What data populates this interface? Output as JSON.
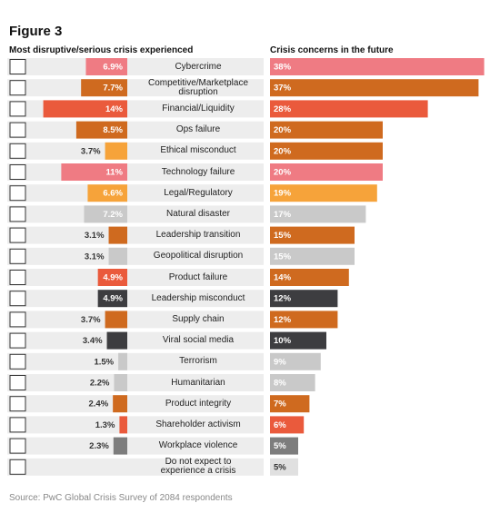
{
  "title": "Figure 3",
  "source": "Source: PwC Global Crisis Survey of 2084 respondents",
  "chart_data": [
    {
      "type": "bar",
      "orientation": "horizontal",
      "direction": "left",
      "title": "Most disruptive/serious crisis experienced",
      "categories": [
        "Cybercrime",
        "Competitive/Marketplace disruption",
        "Financial/Liquidity",
        "Ops failure",
        "Ethical misconduct",
        "Technology failure",
        "Legal/Regulatory",
        "Natural disaster",
        "Leadership transition",
        "Geopolitical disruption",
        "Product failure",
        "Leadership misconduct",
        "Supply chain",
        "Viral social media",
        "Terrorism",
        "Humanitarian",
        "Product integrity",
        "Shareholder activism",
        "Workplace violence",
        "Do not expect to experience a crisis"
      ],
      "values": [
        6.9,
        7.7,
        14,
        8.5,
        3.7,
        11,
        6.6,
        7.2,
        3.1,
        3.1,
        4.9,
        4.9,
        3.7,
        3.4,
        1.5,
        2.2,
        2.4,
        1.3,
        2.3,
        null
      ],
      "value_labels": [
        "6.9%",
        "7.7%",
        "14%",
        "8.5%",
        "3.7%",
        "11%",
        "6.6%",
        "7.2%",
        "3.1%",
        "3.1%",
        "4.9%",
        "4.9%",
        "3.7%",
        "3.4%",
        "1.5%",
        "2.2%",
        "2.4%",
        "1.3%",
        "2.3%",
        null
      ],
      "colors": [
        "#ef7b83",
        "#cf6a1f",
        "#ea5a3c",
        "#cf6a1f",
        "#f6a33a",
        "#ef7b83",
        "#f6a33a",
        "#c9c9c9",
        "#cf6a1f",
        "#c9c9c9",
        "#ea5a3c",
        "#3d3d40",
        "#cf6a1f",
        "#3d3d40",
        "#c9c9c9",
        "#c9c9c9",
        "#cf6a1f",
        "#ea5a3c",
        "#7d7d7d",
        null
      ]
    },
    {
      "type": "bar",
      "orientation": "horizontal",
      "direction": "right",
      "title": "Crisis concerns in the future",
      "values": [
        38,
        37,
        28,
        20,
        20,
        20,
        19,
        17,
        15,
        15,
        14,
        12,
        12,
        10,
        9,
        8,
        7,
        6,
        5,
        5
      ],
      "value_labels": [
        "38%",
        "37%",
        "28%",
        "20%",
        "20%",
        "20%",
        "19%",
        "17%",
        "15%",
        "15%",
        "14%",
        "12%",
        "12%",
        "10%",
        "9%",
        "8%",
        "7%",
        "6%",
        "5%",
        "5%"
      ],
      "colors": [
        "#ef7b83",
        "#cf6a1f",
        "#ea5a3c",
        "#cf6a1f",
        "#cf6a1f",
        "#ef7b83",
        "#f6a33a",
        "#c9c9c9",
        "#cf6a1f",
        "#c9c9c9",
        "#cf6a1f",
        "#3d3d40",
        "#cf6a1f",
        "#3d3d40",
        "#c9c9c9",
        "#c9c9c9",
        "#cf6a1f",
        "#ea5a3c",
        "#7d7d7d",
        "#e0e0e0"
      ]
    }
  ]
}
